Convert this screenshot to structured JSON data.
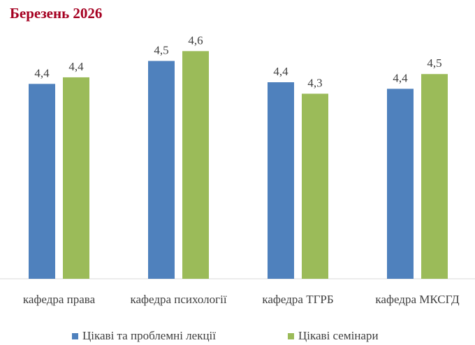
{
  "chart_data": {
    "type": "bar",
    "title": "Березень 2026",
    "categories": [
      "кафедра права",
      "кафедра психології",
      "кафедра ТГРБ",
      "кафедра МКСГД"
    ],
    "series": [
      {
        "name": "Цікаві та проблемні лекції",
        "color": "#4f81bd",
        "values": [
          4.39,
          4.53,
          4.4,
          4.36
        ],
        "value_labels": [
          "4,4",
          "4,5",
          "4,4",
          "4,4"
        ]
      },
      {
        "name": "Цікаві семінари",
        "color": "#9bbb59",
        "values": [
          4.43,
          4.59,
          4.33,
          4.45
        ],
        "value_labels": [
          "4,4",
          "4,6",
          "4,3",
          "4,5"
        ]
      }
    ],
    "ylim": [
      3.2,
      4.7
    ],
    "legend": "bottom"
  }
}
